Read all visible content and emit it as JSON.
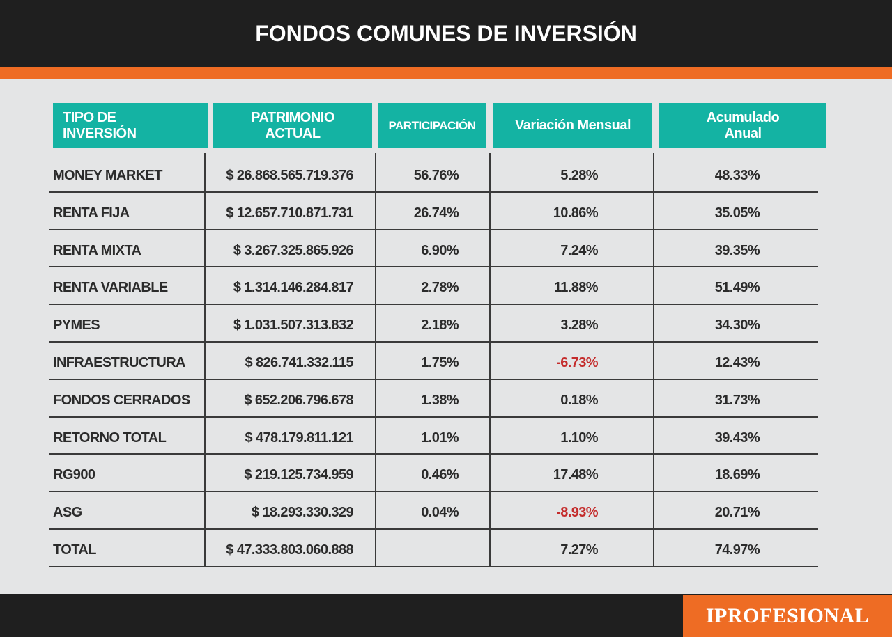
{
  "header": {
    "title": "FONDOS COMUNES DE INVERSIÓN"
  },
  "brand": {
    "logo": "IPROFESIONAL",
    "accent_color": "#ee6c24",
    "header_color": "#14b3a3",
    "negative_color": "#c42c2c"
  },
  "chart_data": {
    "type": "table",
    "title": "FONDOS COMUNES DE INVERSIÓN",
    "columns": [
      "TIPO DE\nINVERSIÓN",
      "PATRIMONIO\nACTUAL",
      "PARTICIPACIÓN",
      "Variación Mensual",
      "Acumulado\nAnual"
    ],
    "rows": [
      {
        "tipo": "MONEY MARKET",
        "patrimonio": "$ 26.868.565.719.376",
        "participacion": "56.76%",
        "variacion": "5.28%",
        "acumulado": "48.33%"
      },
      {
        "tipo": "RENTA FIJA",
        "patrimonio": "$ 12.657.710.871.731",
        "participacion": "26.74%",
        "variacion": "10.86%",
        "acumulado": "35.05%"
      },
      {
        "tipo": "RENTA MIXTA",
        "patrimonio": "$ 3.267.325.865.926",
        "participacion": "6.90%",
        "variacion": "7.24%",
        "acumulado": "39.35%"
      },
      {
        "tipo": "RENTA VARIABLE",
        "patrimonio": "$ 1.314.146.284.817",
        "participacion": "2.78%",
        "variacion": "11.88%",
        "acumulado": "51.49%"
      },
      {
        "tipo": "PYMES",
        "patrimonio": "$ 1.031.507.313.832",
        "participacion": "2.18%",
        "variacion": "3.28%",
        "acumulado": "34.30%"
      },
      {
        "tipo": "INFRAESTRUCTURA",
        "patrimonio": "$ 826.741.332.115",
        "participacion": "1.75%",
        "variacion": "-6.73%",
        "acumulado": "12.43%"
      },
      {
        "tipo": "FONDOS CERRADOS",
        "patrimonio": "$ 652.206.796.678",
        "participacion": "1.38%",
        "variacion": "0.18%",
        "acumulado": "31.73%"
      },
      {
        "tipo": "RETORNO TOTAL",
        "patrimonio": "$ 478.179.811.121",
        "participacion": "1.01%",
        "variacion": "1.10%",
        "acumulado": "39.43%"
      },
      {
        "tipo": "RG900",
        "patrimonio": "$ 219.125.734.959",
        "participacion": "0.46%",
        "variacion": "17.48%",
        "acumulado": "18.69%"
      },
      {
        "tipo": "ASG",
        "patrimonio": "$ 18.293.330.329",
        "participacion": "0.04%",
        "variacion": "-8.93%",
        "acumulado": "20.71%"
      },
      {
        "tipo": "TOTAL",
        "patrimonio": "$ 47.333.803.060.888",
        "participacion": "",
        "variacion": "7.27%",
        "acumulado": "74.97%"
      }
    ]
  }
}
